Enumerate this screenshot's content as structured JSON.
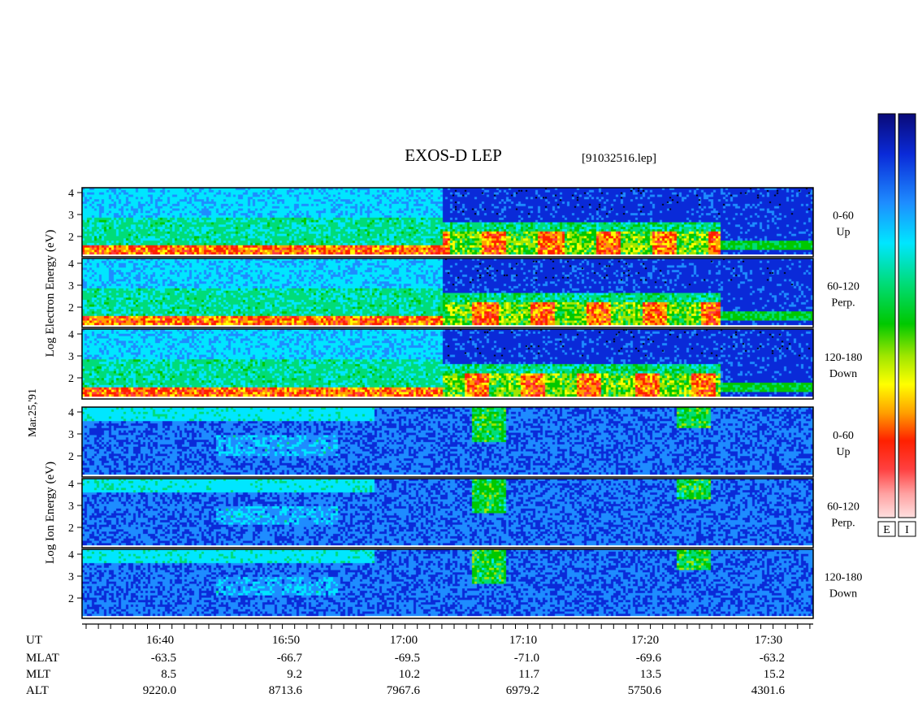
{
  "chart_data": {
    "type": "heatmap",
    "title": "EXOS-D LEP",
    "file_label": "[91032516.lep]",
    "date_label": "Mar.25,'91",
    "x_axis": {
      "unit_label": "UT",
      "ticks": [
        "16:40",
        "16:50",
        "17:00",
        "17:10",
        "17:20",
        "17:30"
      ]
    },
    "ephemeris": [
      {
        "name": "MLAT",
        "values": [
          "-63.5",
          "-66.7",
          "-69.5",
          "-71.0",
          "-69.6",
          "-63.2"
        ]
      },
      {
        "name": "MLT",
        "values": [
          "8.5",
          "9.2",
          "10.2",
          "11.7",
          "13.5",
          "15.2"
        ]
      },
      {
        "name": "ALT",
        "values": [
          "9220.0",
          "8713.6",
          "7967.6",
          "6979.2",
          "5750.6",
          "4301.6"
        ]
      }
    ],
    "y_ticks": [
      "4",
      "3",
      "2"
    ],
    "groups": [
      {
        "id": "electron",
        "ylabel": [
          "Log",
          "Electron",
          "Energy",
          "(eV)"
        ],
        "panels": [
          {
            "angle": "0-60",
            "dir": "Up"
          },
          {
            "angle": "60-120",
            "dir": "Perp."
          },
          {
            "angle": "120-180",
            "dir": "Down"
          }
        ]
      },
      {
        "id": "ion",
        "ylabel": [
          "Log",
          "Ion",
          "Energy",
          "(eV)"
        ],
        "panels": [
          {
            "angle": "0-60",
            "dir": "Up"
          },
          {
            "angle": "60-120",
            "dir": "Perp."
          },
          {
            "angle": "120-180",
            "dir": "Down"
          }
        ]
      }
    ],
    "colorbar": {
      "labels": [
        "E",
        "I"
      ],
      "colors": [
        "#0a0a78",
        "#0a2ad8",
        "#1e8cff",
        "#00e6ff",
        "#00dc78",
        "#00c800",
        "#a0e600",
        "#ffff00",
        "#ffa000",
        "#ff2000",
        "#ff4040",
        "#ffa0a0",
        "#ffe0e0"
      ]
    }
  }
}
